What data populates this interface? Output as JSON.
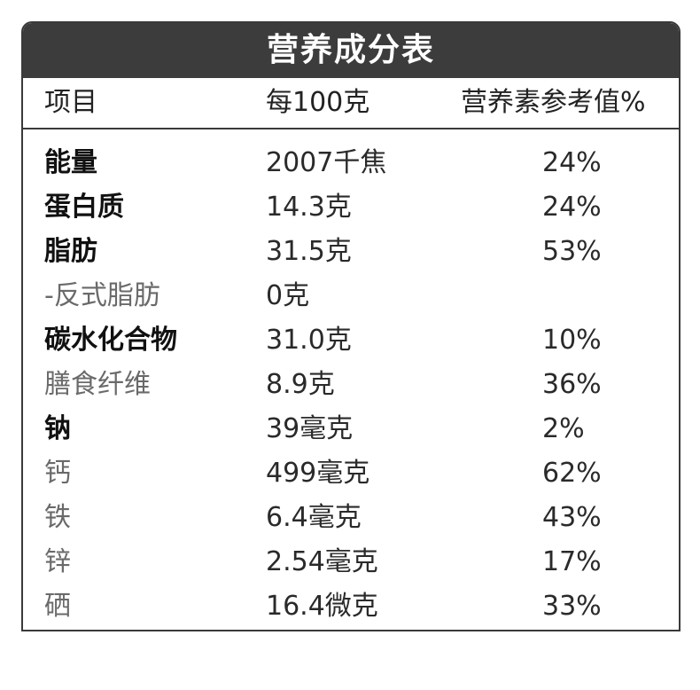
{
  "table": {
    "title": "营养成分表",
    "headers": {
      "item": "项目",
      "per100g": "每100克",
      "nrv": "营养素参考值%"
    },
    "rows": [
      {
        "name": "能量",
        "amount": "2007千焦",
        "nrv": "24%",
        "style": "bold"
      },
      {
        "name": "蛋白质",
        "amount": "14.3克",
        "nrv": "24%",
        "style": "bold"
      },
      {
        "name": "脂肪",
        "amount": "31.5克",
        "nrv": "53%",
        "style": "bold"
      },
      {
        "name": "-反式脂肪",
        "amount": "0克",
        "nrv": "",
        "style": "light"
      },
      {
        "name": "碳水化合物",
        "amount": "31.0克",
        "nrv": "10%",
        "style": "bold"
      },
      {
        "name": "膳食纤维",
        "amount": "8.9克",
        "nrv": "36%",
        "style": "light"
      },
      {
        "name": "钠",
        "amount": "39毫克",
        "nrv": "2%",
        "style": "bold"
      },
      {
        "name": "钙",
        "amount": "499毫克",
        "nrv": "62%",
        "style": "light"
      },
      {
        "name": "铁",
        "amount": "6.4毫克",
        "nrv": "43%",
        "style": "light"
      },
      {
        "name": "锌",
        "amount": "2.54毫克",
        "nrv": "17%",
        "style": "light"
      },
      {
        "name": "硒",
        "amount": "16.4微克",
        "nrv": "33%",
        "style": "light"
      }
    ]
  },
  "colors": {
    "title_background": "#3c3c3c",
    "title_text": "#ffffff",
    "border": "#3a3a3a",
    "light_text": "#6a6a6a"
  }
}
